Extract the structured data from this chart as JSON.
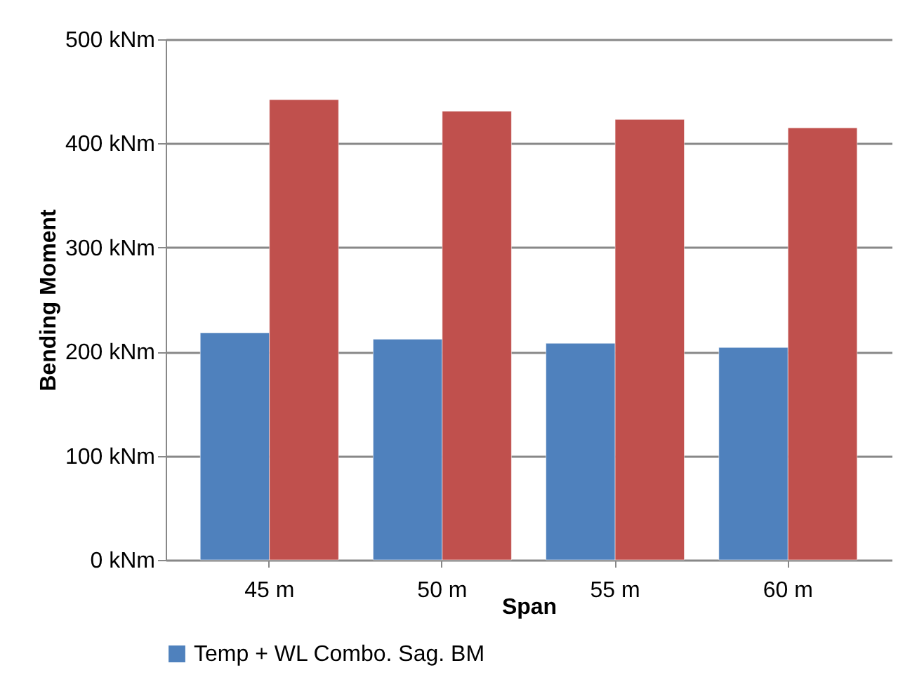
{
  "chart_data": {
    "type": "bar",
    "xlabel": "Span",
    "ylabel": "Bending Moment",
    "categories": [
      "45 m",
      "50 m",
      "55 m",
      "60 m"
    ],
    "series": [
      {
        "name": "Temp + WL Combo. Sag. BM",
        "color": "#4f81bd",
        "values": [
          218,
          212,
          208,
          204
        ]
      },
      {
        "color": "#c0504d",
        "values": [
          442,
          431,
          423,
          415
        ]
      }
    ],
    "ylim": [
      0,
      500
    ],
    "yticks": [
      {
        "value": 0,
        "label": "0 kNm"
      },
      {
        "value": 100,
        "label": "100 kNm"
      },
      {
        "value": 200,
        "label": "200 kNm"
      },
      {
        "value": 300,
        "label": "300 kNm"
      },
      {
        "value": 400,
        "label": "400 kNm"
      },
      {
        "value": 500,
        "label": "500 kNm"
      }
    ],
    "grid": "y",
    "legend": "bottom"
  }
}
